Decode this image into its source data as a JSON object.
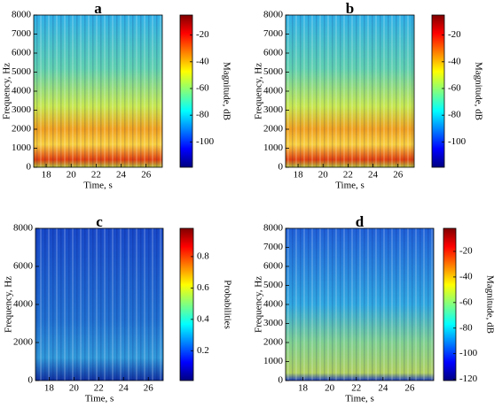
{
  "chart_data": [
    {
      "type": "heatmap",
      "title": "a",
      "xlabel": "Time, s",
      "ylabel": "Frequency, Hz",
      "colorbar_label": "Magnitude, dB",
      "xlim": [
        17,
        27.3
      ],
      "xticks": [
        18,
        20,
        22,
        24,
        26
      ],
      "ylim": [
        0,
        8000
      ],
      "yticks": [
        0,
        1000,
        2000,
        3000,
        4000,
        5000,
        6000,
        7000,
        8000
      ],
      "clim": [
        -119,
        -5
      ],
      "cticks": [
        -100,
        -80,
        -60,
        -40,
        -20
      ]
    },
    {
      "type": "heatmap",
      "title": "b",
      "xlabel": "Time, s",
      "ylabel": "Frequency, Hz",
      "colorbar_label": "Magnitude, dB",
      "xlim": [
        17,
        27.3
      ],
      "xticks": [
        18,
        20,
        22,
        24,
        26
      ],
      "ylim": [
        0,
        8000
      ],
      "yticks": [
        0,
        1000,
        2000,
        3000,
        4000,
        5000,
        6000,
        7000,
        8000
      ],
      "clim": [
        -119,
        -5
      ],
      "cticks": [
        -100,
        -80,
        -60,
        -40,
        -20
      ]
    },
    {
      "type": "heatmap",
      "title": "c",
      "xlabel": "Time, s",
      "ylabel": "Frequency, Hz",
      "colorbar_label": "Probabilities",
      "xlim": [
        16.9,
        27.2
      ],
      "xticks": [
        18,
        20,
        22,
        24,
        26
      ],
      "ylim": [
        0,
        8000
      ],
      "yticks": [
        0,
        2000,
        4000,
        6000,
        8000
      ],
      "clim": [
        0.01,
        0.98
      ],
      "cticks": [
        0.2,
        0.4,
        0.6,
        0.8
      ]
    },
    {
      "type": "heatmap",
      "title": "d",
      "xlabel": "Time, s",
      "ylabel": "Frequency, Hz",
      "colorbar_label": "Magnitude, dB",
      "xlim": [
        16.7,
        27.8
      ],
      "xticks": [
        18,
        20,
        22,
        24,
        26
      ],
      "ylim": [
        0,
        8000
      ],
      "yticks": [
        0,
        1000,
        2000,
        3000,
        4000,
        5000,
        6000,
        7000,
        8000
      ],
      "clim": [
        -121,
        -2
      ],
      "cticks": [
        -120,
        -100,
        -80,
        -60,
        -40,
        -20
      ]
    }
  ]
}
